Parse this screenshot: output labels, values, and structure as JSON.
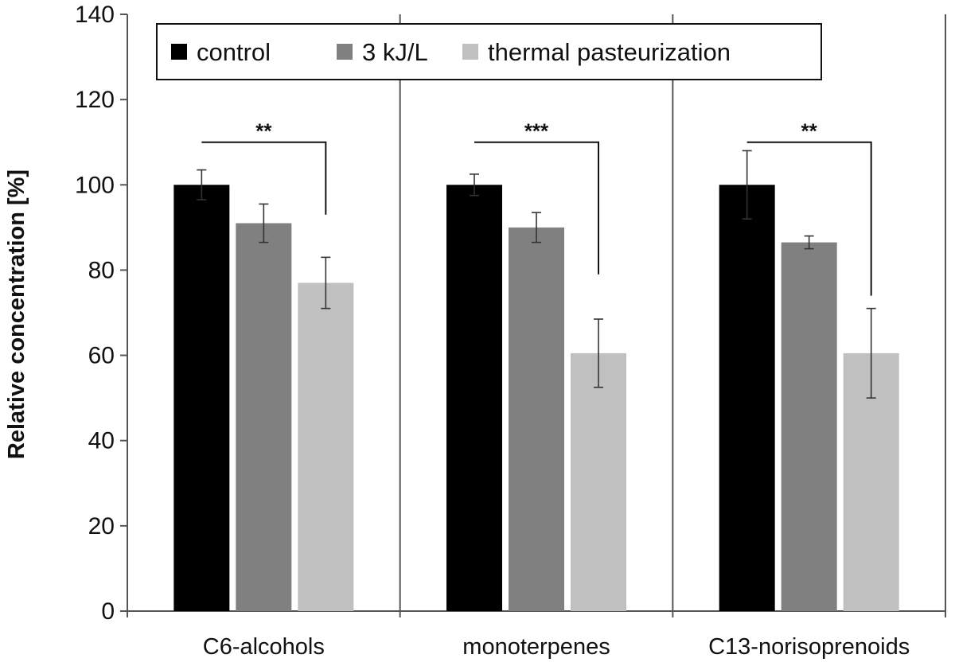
{
  "chart_data": {
    "type": "bar",
    "ylabel": "Relative concentration [%]",
    "xlabel": "",
    "ylim": [
      0,
      140
    ],
    "yticks": [
      0,
      20,
      40,
      60,
      80,
      100,
      120,
      140
    ],
    "grid": false,
    "legend_position": "top",
    "categories": [
      "C6-alcohols",
      "monoterpenes",
      "C13-norisoprenoids"
    ],
    "series": [
      {
        "name": "control",
        "color": "#000000",
        "values": [
          100,
          100,
          100
        ],
        "errors": [
          3.5,
          2.5,
          8
        ]
      },
      {
        "name": "3 kJ/L",
        "color": "#808080",
        "values": [
          91,
          90,
          86.5
        ],
        "errors": [
          4.5,
          3.5,
          1.5
        ]
      },
      {
        "name": "thermal pasteurization",
        "color": "#c0c0c0",
        "values": [
          77,
          60.5,
          60.5
        ],
        "errors": [
          6,
          8,
          10.5
        ]
      }
    ],
    "significance": [
      {
        "category": "C6-alcohols",
        "label": "**",
        "bracket_y": 110,
        "drop_to": 93
      },
      {
        "category": "monoterpenes",
        "label": "***",
        "bracket_y": 110,
        "drop_to": 79
      },
      {
        "category": "C13-norisoprenoids",
        "label": "**",
        "bracket_y": 110,
        "drop_to": 74
      }
    ]
  }
}
